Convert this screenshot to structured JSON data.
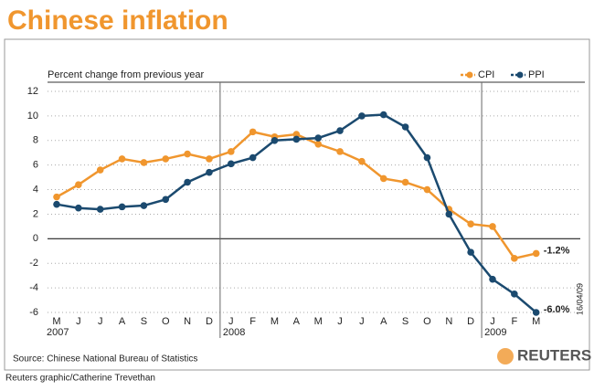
{
  "chart_data": {
    "type": "line",
    "title": "Chinese inflation",
    "y_label": "Percent change from previous year",
    "source": "Source: Chinese National Bureau of Statistics",
    "credit": "Reuters graphic/Catherine Trevethan",
    "date_stamp": "16/04/09",
    "logo": "REUTERS",
    "categories": [
      "M",
      "J",
      "J",
      "A",
      "S",
      "O",
      "N",
      "D",
      "J",
      "F",
      "M",
      "A",
      "M",
      "J",
      "J",
      "A",
      "S",
      "O",
      "N",
      "D",
      "J",
      "F",
      "M"
    ],
    "year_labels": [
      "2007",
      "2008",
      "2009"
    ],
    "series": [
      {
        "name": "CPI",
        "color": "#f0962e",
        "values": [
          3.4,
          4.4,
          5.6,
          6.5,
          6.2,
          6.5,
          6.9,
          6.5,
          7.1,
          8.7,
          8.3,
          8.5,
          7.7,
          7.1,
          6.3,
          4.9,
          4.6,
          4.0,
          2.4,
          1.2,
          1.0,
          -1.6,
          -1.2
        ],
        "value_labels": [
          null,
          null,
          null,
          null,
          null,
          null,
          null,
          null,
          null,
          null,
          null,
          null,
          null,
          null,
          null,
          null,
          null,
          null,
          null,
          null,
          null,
          null,
          "-1.2%"
        ]
      },
      {
        "name": "PPI",
        "color": "#1b4a6f",
        "values": [
          2.8,
          2.5,
          2.4,
          2.6,
          2.7,
          3.2,
          4.6,
          5.4,
          6.1,
          6.6,
          8.0,
          8.1,
          8.2,
          8.8,
          10.0,
          10.1,
          9.1,
          6.6,
          2.0,
          -1.1,
          -3.3,
          -4.5,
          -6.0
        ],
        "value_labels": [
          null,
          null,
          null,
          null,
          null,
          null,
          null,
          null,
          null,
          null,
          null,
          null,
          null,
          null,
          null,
          null,
          null,
          null,
          null,
          null,
          null,
          null,
          "-6.0%"
        ]
      }
    ],
    "ylim": [
      -6,
      12
    ],
    "yticks": [
      -6,
      -4,
      -2,
      0,
      2,
      4,
      6,
      8,
      10,
      12
    ],
    "grid": true,
    "legend": "top-right"
  }
}
